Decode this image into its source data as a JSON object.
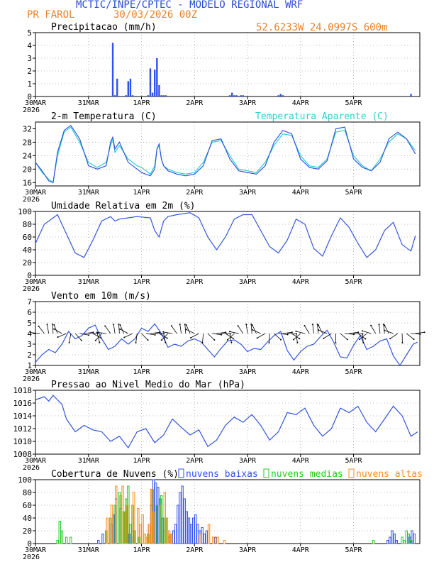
{
  "header": {
    "title": "MCTIC/INPE/CPTEC - MODELO REGIONAL WRF",
    "station": "PR FAROL",
    "run_date": "30/03/2026 00Z",
    "location": "52.6233W  24.0997S  600m",
    "title_color": "#2b4bd9",
    "info_color": "#e8822a"
  },
  "days": [
    "30MAR",
    "31MAR",
    "1APR",
    "2APR",
    "3APR",
    "4APR",
    "5APR"
  ],
  "year": "2026",
  "chart_data": [
    {
      "id": "precip",
      "type": "bar",
      "title": "Precipitacao (mm/h)",
      "ylim": [
        0,
        5
      ],
      "yticks": [
        0,
        1,
        2,
        3,
        4,
        5
      ],
      "color": "#3050f0",
      "hours": [
        35,
        36,
        37,
        41,
        42,
        43,
        44,
        51,
        52,
        53,
        54,
        55,
        56,
        57,
        58,
        59,
        88,
        89,
        90,
        91,
        93,
        94,
        110,
        111,
        112,
        170
      ],
      "values": [
        4.2,
        0.1,
        1.4,
        0.1,
        1.2,
        1.4,
        0.1,
        0.1,
        2.2,
        0.3,
        2.1,
        3.0,
        0.9,
        0.1,
        0.1,
        0.1,
        0.1,
        0.3,
        0.1,
        0.1,
        0.1,
        0.1,
        0.1,
        0.2,
        0.1,
        0.2
      ]
    },
    {
      "id": "temp",
      "type": "line",
      "title": "2-m Temperatura (C)",
      "ylim": [
        15,
        34
      ],
      "yticks": [
        16,
        20,
        24,
        28,
        32
      ],
      "series": [
        {
          "name": "Temperatura Aparente (C)",
          "color": "#33cccc",
          "hours": [
            0,
            3,
            6,
            8,
            10,
            13,
            16,
            20,
            24,
            28,
            32,
            34,
            35,
            36,
            38,
            42,
            46,
            48,
            52,
            54,
            55,
            56,
            57,
            58,
            60,
            64,
            68,
            72,
            76,
            80,
            84,
            88,
            92,
            96,
            100,
            104,
            108,
            112,
            116,
            120,
            124,
            128,
            132,
            136,
            140,
            144,
            148,
            152,
            156,
            160,
            164,
            168,
            172
          ],
          "values": [
            22,
            19,
            17,
            16,
            24,
            31,
            32.5,
            28,
            22,
            20.5,
            22,
            27,
            29,
            25,
            27,
            23,
            21,
            20.5,
            18.5,
            21,
            26,
            27,
            23,
            21,
            20,
            19,
            18.5,
            19,
            22,
            28,
            28.5,
            24,
            20,
            19.5,
            19,
            22,
            27,
            30.5,
            30,
            24,
            21,
            20.5,
            23,
            31,
            31.5,
            24,
            21,
            19.5,
            23,
            28,
            30.5,
            29,
            25.5
          ]
        },
        {
          "name": "2-m Temperatura (C)",
          "color": "#3355dd",
          "hours": [
            0,
            3,
            6,
            8,
            10,
            13,
            16,
            20,
            24,
            28,
            32,
            34,
            35,
            36,
            38,
            42,
            46,
            48,
            52,
            54,
            55,
            56,
            57,
            58,
            60,
            64,
            68,
            72,
            76,
            80,
            84,
            88,
            92,
            96,
            100,
            104,
            108,
            112,
            116,
            120,
            124,
            128,
            132,
            136,
            140,
            144,
            148,
            152,
            156,
            160,
            164,
            168,
            172
          ],
          "values": [
            22,
            19.5,
            16.5,
            16,
            25,
            31.5,
            33,
            29,
            21,
            20,
            21,
            28,
            29.5,
            26,
            28,
            22,
            20,
            19,
            18,
            20,
            26,
            27.5,
            23,
            21,
            19.5,
            18.5,
            18,
            18.5,
            21,
            28.5,
            29,
            23,
            19.5,
            19,
            18.5,
            21,
            28,
            31.5,
            30.5,
            23,
            20.5,
            20,
            22.5,
            32,
            32.5,
            23,
            20.5,
            19.5,
            22,
            29,
            31,
            29,
            24.5
          ]
        }
      ]
    },
    {
      "id": "rh",
      "type": "line",
      "title": "Umidade Relativa em 2m (%)",
      "ylim": [
        0,
        100
      ],
      "yticks": [
        0,
        20,
        40,
        60,
        80,
        100
      ],
      "series": [
        {
          "name": "Umidade Relativa em 2m (%)",
          "color": "#3355dd",
          "hours": [
            0,
            4,
            8,
            10,
            14,
            18,
            22,
            26,
            30,
            34,
            36,
            38,
            42,
            46,
            52,
            54,
            56,
            58,
            60,
            64,
            70,
            74,
            78,
            82,
            86,
            90,
            94,
            98,
            102,
            106,
            110,
            114,
            118,
            122,
            126,
            130,
            134,
            138,
            142,
            146,
            150,
            154,
            158,
            162,
            166,
            170,
            172
          ],
          "values": [
            50,
            80,
            90,
            95,
            65,
            35,
            28,
            55,
            85,
            92,
            85,
            88,
            90,
            92,
            90,
            70,
            60,
            85,
            92,
            95,
            98,
            90,
            60,
            40,
            60,
            88,
            95,
            95,
            70,
            45,
            35,
            55,
            88,
            80,
            42,
            30,
            62,
            90,
            75,
            50,
            28,
            40,
            70,
            83,
            48,
            38,
            62
          ]
        }
      ]
    },
    {
      "id": "wind",
      "type": "line",
      "title": "Vento em 10m (m/s)",
      "ylim": [
        1,
        7
      ],
      "yticks": [
        1,
        2,
        3,
        4,
        5,
        6,
        7
      ],
      "series": [
        {
          "name": "Vento em 10m (m/s)",
          "color": "#3355dd",
          "hours": [
            0,
            3,
            6,
            9,
            12,
            15,
            18,
            21,
            24,
            27,
            30,
            33,
            36,
            39,
            42,
            45,
            48,
            51,
            54,
            57,
            60,
            63,
            66,
            69,
            72,
            75,
            78,
            81,
            84,
            87,
            90,
            93,
            96,
            99,
            102,
            105,
            108,
            111,
            114,
            117,
            120,
            123,
            126,
            129,
            132,
            135,
            138,
            141,
            144,
            147,
            150,
            153,
            156,
            159,
            162,
            165,
            168,
            171,
            173
          ],
          "values": [
            1.3,
            2.0,
            2.5,
            2.2,
            3.0,
            4.2,
            3.5,
            3.8,
            4.5,
            4.8,
            3.5,
            2.5,
            2.8,
            3.5,
            3.0,
            3.5,
            4.5,
            4.2,
            4.9,
            4.0,
            2.7,
            3.0,
            2.8,
            3.3,
            3.5,
            3.2,
            2.5,
            1.8,
            2.6,
            3.3,
            3.4,
            3.0,
            2.3,
            2.6,
            2.5,
            3.2,
            3.8,
            4.2,
            2.4,
            1.5,
            2.3,
            2.8,
            3.0,
            3.7,
            4.3,
            3.2,
            1.8,
            1.7,
            2.9,
            3.8,
            2.5,
            2.8,
            3.3,
            3.5,
            1.9,
            1.0,
            2.0,
            3.0,
            3.2
          ]
        }
      ],
      "barbs_level": 4
    },
    {
      "id": "pressure",
      "type": "line",
      "title": "Pressao ao Nivel Medio do Mar (hPa)",
      "ylim": [
        1008,
        1018
      ],
      "yticks": [
        1008,
        1010,
        1012,
        1014,
        1016,
        1018
      ],
      "series": [
        {
          "name": "Pressao ao Nivel Medio do Mar (hPa)",
          "color": "#3355dd",
          "hours": [
            0,
            4,
            6,
            8,
            10,
            12,
            14,
            18,
            22,
            26,
            30,
            34,
            38,
            42,
            46,
            50,
            54,
            58,
            62,
            66,
            70,
            74,
            78,
            82,
            86,
            90,
            94,
            98,
            102,
            106,
            110,
            114,
            118,
            122,
            126,
            130,
            134,
            138,
            142,
            146,
            150,
            154,
            158,
            162,
            166,
            170,
            173
          ],
          "values": [
            1016.5,
            1017,
            1016.3,
            1017.2,
            1016.5,
            1015.8,
            1013.5,
            1011.5,
            1012.5,
            1011.8,
            1011.5,
            1010.0,
            1010.8,
            1009.0,
            1011.5,
            1012.0,
            1009.8,
            1011.0,
            1013.5,
            1012.2,
            1011.0,
            1011.8,
            1009.2,
            1010.2,
            1012.5,
            1013.8,
            1013.0,
            1014.2,
            1012.5,
            1010.2,
            1011.5,
            1014.5,
            1014.2,
            1015.2,
            1012.5,
            1010.8,
            1012.0,
            1015.2,
            1014.5,
            1015.5,
            1013.0,
            1011.5,
            1013.5,
            1015.5,
            1014.0,
            1010.8,
            1011.5
          ]
        }
      ]
    },
    {
      "id": "clouds",
      "type": "bar",
      "title": "Cobertura de Nuvens (%)",
      "ylim": [
        0,
        100
      ],
      "yticks": [
        0,
        20,
        40,
        60,
        80,
        100
      ],
      "series": [
        {
          "name": "nuvens baixas",
          "color": "#3050f0",
          "hours": [
            29,
            31,
            33,
            35,
            36,
            37,
            39,
            41,
            43,
            45,
            52,
            53,
            54,
            55,
            56,
            57,
            58,
            59,
            61,
            63,
            64,
            65,
            66,
            67,
            68,
            69,
            70,
            71,
            72,
            73,
            74,
            75,
            76,
            77,
            78,
            82,
            160,
            161,
            162,
            163,
            164,
            170,
            171,
            172
          ],
          "values": [
            5,
            15,
            40,
            30,
            45,
            70,
            55,
            20,
            15,
            10,
            30,
            60,
            100,
            95,
            88,
            70,
            40,
            20,
            10,
            20,
            30,
            60,
            80,
            90,
            70,
            50,
            40,
            30,
            40,
            45,
            30,
            20,
            25,
            15,
            20,
            10,
            5,
            10,
            20,
            15,
            5,
            10,
            20,
            15
          ]
        },
        {
          "name": "nuvens medias",
          "color": "#22cc22",
          "hours": [
            10,
            11,
            12,
            14,
            16,
            32,
            34,
            36,
            38,
            40,
            41,
            42,
            43,
            44,
            45,
            47,
            51,
            53,
            55,
            57,
            59,
            61,
            153,
            166,
            167,
            168,
            169,
            170
          ],
          "values": [
            5,
            35,
            20,
            10,
            10,
            20,
            40,
            60,
            80,
            50,
            70,
            90,
            30,
            60,
            20,
            10,
            15,
            85,
            60,
            75,
            40,
            15,
            5,
            10,
            5,
            20,
            15,
            5
          ]
        },
        {
          "name": "nuvens altas",
          "color": "#ff8c1a",
          "hours": [
            32,
            34,
            36,
            38,
            39,
            40,
            41,
            44,
            46,
            47,
            48,
            49,
            50,
            51,
            52,
            53,
            56,
            58,
            59,
            60,
            61,
            74,
            78,
            80,
            82,
            85
          ],
          "values": [
            40,
            60,
            90,
            75,
            90,
            50,
            60,
            80,
            55,
            30,
            45,
            15,
            10,
            30,
            85,
            50,
            60,
            80,
            40,
            20,
            15,
            15,
            30,
            10,
            10,
            5
          ]
        }
      ]
    }
  ]
}
